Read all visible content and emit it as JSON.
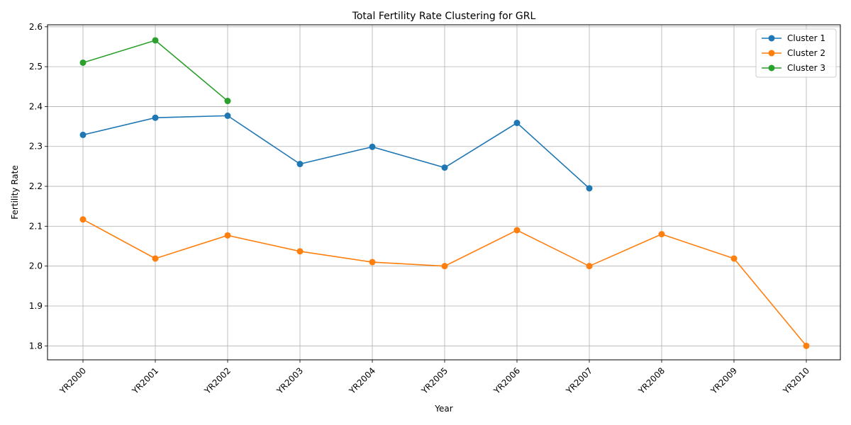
{
  "chart_data": {
    "type": "line",
    "title": "Total Fertility Rate Clustering for GRL",
    "xlabel": "Year",
    "ylabel": "Fertility Rate",
    "categories": [
      "YR2000",
      "YR2001",
      "YR2002",
      "YR2003",
      "YR2004",
      "YR2005",
      "YR2006",
      "YR2007",
      "YR2008",
      "YR2009",
      "YR2010"
    ],
    "yticks": [
      "1.8",
      "1.9",
      "2.0",
      "2.1",
      "2.2",
      "2.3",
      "2.4",
      "2.5",
      "2.6"
    ],
    "ylim": [
      1.765,
      2.605
    ],
    "grid": true,
    "legend_position": "top-right",
    "series": [
      {
        "name": "Cluster 1",
        "color": "#1f77b4",
        "values": [
          2.329,
          2.372,
          2.377,
          2.256,
          2.299,
          2.247,
          2.359,
          2.195,
          null,
          null,
          null
        ]
      },
      {
        "name": "Cluster 2",
        "color": "#ff7f0e",
        "values": [
          2.117,
          2.019,
          2.077,
          2.037,
          2.01,
          2.0,
          2.09,
          2.0,
          2.08,
          2.019,
          1.8
        ]
      },
      {
        "name": "Cluster 3",
        "color": "#2ca02c",
        "values": [
          2.51,
          2.566,
          2.414,
          null,
          null,
          null,
          null,
          null,
          null,
          null,
          null
        ]
      }
    ]
  }
}
